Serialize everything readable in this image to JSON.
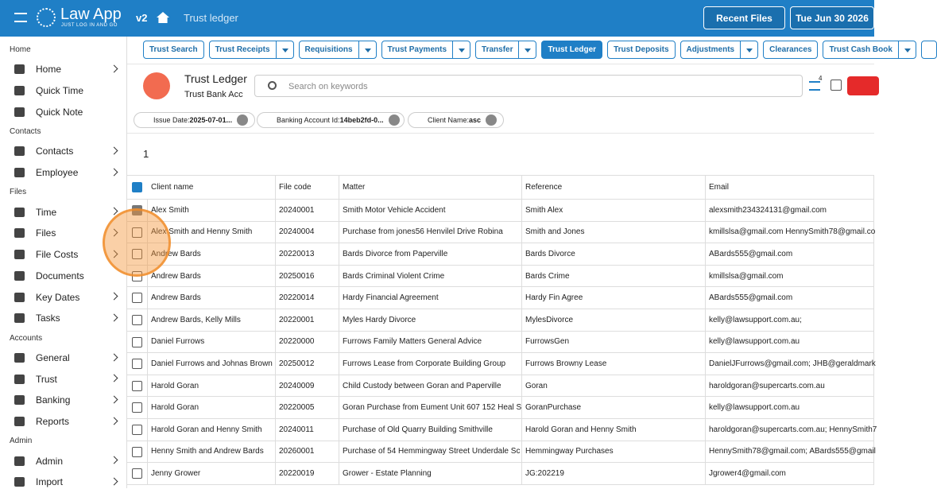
{
  "header": {
    "brand": "Law App",
    "tagline": "JUST LOG IN AND GO",
    "version": "v2",
    "breadcrumb": "Trust ledger",
    "buttons": [
      "Recent Files",
      "Tue Jun 30 2026"
    ]
  },
  "sidebar": [
    {
      "title": "Home",
      "items": [
        {
          "label": "Home",
          "expandable": true
        },
        {
          "label": "Quick Time",
          "expandable": false
        },
        {
          "label": "Quick Note",
          "expandable": false
        }
      ]
    },
    {
      "title": "Contacts",
      "items": [
        {
          "label": "Contacts",
          "expandable": true
        },
        {
          "label": "Employee",
          "expandable": true
        }
      ]
    },
    {
      "title": "Files",
      "items": [
        {
          "label": "Time",
          "expandable": true
        },
        {
          "label": "Files",
          "expandable": true
        },
        {
          "label": "File Costs",
          "expandable": true
        },
        {
          "label": "Documents",
          "expandable": false
        },
        {
          "label": "Key Dates",
          "expandable": true
        },
        {
          "label": "Tasks",
          "expandable": true
        }
      ]
    },
    {
      "title": "Accounts",
      "items": [
        {
          "label": "General",
          "expandable": true
        },
        {
          "label": "Trust",
          "expandable": true
        },
        {
          "label": "Banking",
          "expandable": true
        },
        {
          "label": "Reports",
          "expandable": true
        }
      ]
    },
    {
      "title": "Admin",
      "items": [
        {
          "label": "Admin",
          "expandable": true
        },
        {
          "label": "Import",
          "expandable": true
        }
      ]
    }
  ],
  "tabs": [
    {
      "label": "Trust Search",
      "dropdown": false,
      "active": false
    },
    {
      "label": "Trust Receipts",
      "dropdown": true,
      "active": false
    },
    {
      "label": "Requisitions",
      "dropdown": true,
      "active": false
    },
    {
      "label": "Trust Payments",
      "dropdown": true,
      "active": false
    },
    {
      "label": "Transfer",
      "dropdown": true,
      "active": false
    },
    {
      "label": "Trust Ledger",
      "dropdown": false,
      "active": true
    },
    {
      "label": "Trust Deposits",
      "dropdown": false,
      "active": false
    },
    {
      "label": "Adjustments",
      "dropdown": true,
      "active": false
    },
    {
      "label": "Clearances",
      "dropdown": false,
      "active": false
    },
    {
      "label": "Trust Cash Book",
      "dropdown": true,
      "active": false
    }
  ],
  "panel": {
    "title": "Trust Ledger",
    "subtitle": "Trust Bank Acc",
    "search_placeholder": "Search on keywords",
    "filter_badge": "4"
  },
  "filters": [
    {
      "label": "Issue Date:",
      "value": "2025-07-01..."
    },
    {
      "label": "Banking Account Id:",
      "value": "14beb2fd-0..."
    },
    {
      "label": "Client Name:",
      "value": "asc"
    }
  ],
  "page_count": "1",
  "table": {
    "columns": [
      "Client name",
      "File code",
      "Matter",
      "Reference",
      "Email"
    ],
    "rows": [
      [
        "Alex Smith",
        "20240001",
        "Smith Motor Vehicle Accident",
        "Smith Alex",
        "alexsmith234324131@gmail.com"
      ],
      [
        "Alex Smith and Henny Smith",
        "20240004",
        "Purchase from jones56 Henvilel Drive Robina",
        "Smith and Jones",
        "kmillslsa@gmail.com HennySmith78@gmail.co"
      ],
      [
        "Andrew Bards",
        "20220013",
        "Bards Divorce from Paperville",
        "Bards Divorce",
        "ABards555@gmail.com"
      ],
      [
        "Andrew Bards",
        "20250016",
        "Bards Criminal Violent Crime",
        "Bards Crime",
        "kmillslsa@gmail.com"
      ],
      [
        "Andrew Bards",
        "20220014",
        "Hardy Financial Agreement",
        "Hardy Fin Agree",
        "ABards555@gmail.com"
      ],
      [
        "Andrew Bards, Kelly Mills",
        "20220001",
        "Myles Hardy Divorce",
        "MylesDivorce",
        "kelly@lawsupport.com.au;"
      ],
      [
        "Daniel Furrows",
        "20220000",
        "Furrows Family Matters General Advice",
        "FurrowsGen",
        "kelly@lawsupport.com.au"
      ],
      [
        "Daniel Furrows and Johnas Brown",
        "20250012",
        "Furrows Lease from Corporate Building Group",
        "Furrows Browny Lease",
        "DanielJFurrows@gmail.com; JHB@geraldmark"
      ],
      [
        "Harold Goran",
        "20240009",
        "Child Custody between Goran and Paperville",
        "Goran",
        "haroldgoran@supercarts.com.au"
      ],
      [
        "Harold Goran",
        "20220005",
        "Goran Purchase from Eument Unit 607 152 Heal S",
        "GoranPurchase",
        "kelly@lawsupport.com.au"
      ],
      [
        "Harold Goran and Henny Smith",
        "20240011",
        "Purchase of Old Quarry Building Smithville",
        "Harold Goran and Henny Smith",
        "haroldgoran@supercarts.com.au; HennySmith7"
      ],
      [
        "Henny Smith and Andrew Bards",
        "20260001",
        "Purchase of 54 Hemmingway Street Underdale Sc",
        "Hemmingway Purchases",
        "HennySmith78@gmail.com; ABards555@gmail"
      ],
      [
        "Jenny Grower",
        "20220019",
        "Grower - Estate Planning",
        "JG:202219",
        "Jgrower4@gmail.com"
      ]
    ],
    "checked": [
      true,
      false,
      false,
      false,
      false,
      false,
      false,
      false,
      false,
      false,
      false,
      false,
      false
    ]
  }
}
